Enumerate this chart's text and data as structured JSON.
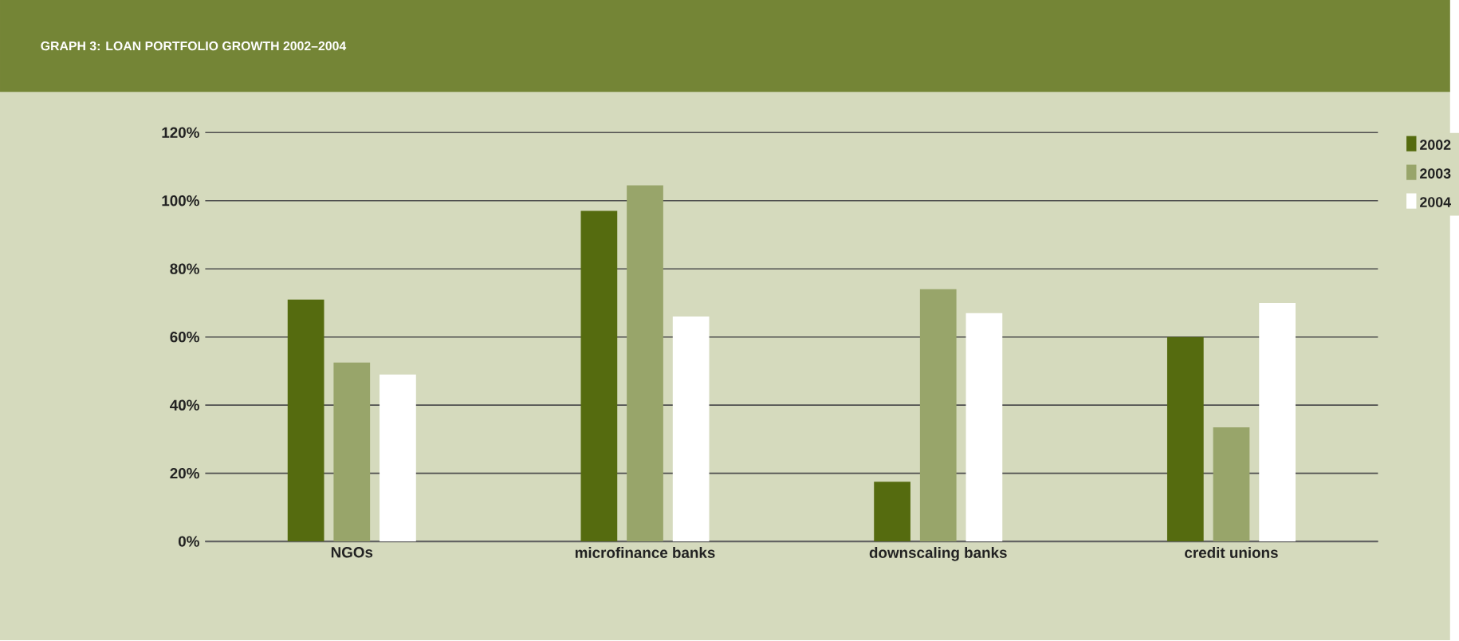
{
  "chart_data": {
    "type": "bar",
    "title": "GRAPH 3: LOAN PORTFOLIO GROWTH 2002–2004",
    "categories": [
      "NGOs",
      "microfinance banks",
      "downscaling banks",
      "credit unions"
    ],
    "series": [
      {
        "name": "2002",
        "color": "#556b0f",
        "values": [
          71,
          97,
          17.5,
          60
        ]
      },
      {
        "name": "2003",
        "color": "#98a56a",
        "values": [
          52.5,
          104.5,
          74,
          33.5
        ]
      },
      {
        "name": "2004",
        "color": "#ffffff",
        "values": [
          49,
          66,
          67,
          70
        ]
      }
    ],
    "ylim": [
      0,
      120
    ],
    "yticks": [
      {
        "value": 0,
        "label": "0%"
      },
      {
        "value": 20,
        "label": "20%"
      },
      {
        "value": 40,
        "label": "40%"
      },
      {
        "value": 60,
        "label": "60%"
      },
      {
        "value": 80,
        "label": "80%"
      },
      {
        "value": 100,
        "label": "100%"
      },
      {
        "value": 120,
        "label": "120%"
      }
    ],
    "grid": "y",
    "legend": "right"
  }
}
